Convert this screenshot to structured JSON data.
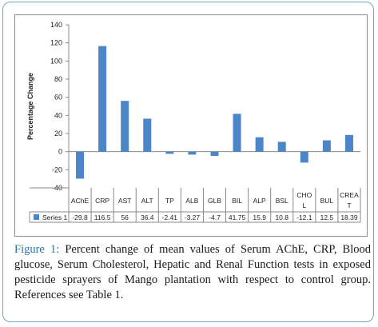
{
  "chart_data": {
    "type": "bar",
    "ylabel": "Percentage Change",
    "ylim": [
      -40,
      140
    ],
    "yticks": [
      -40,
      -20,
      0,
      20,
      40,
      60,
      80,
      100,
      120,
      140
    ],
    "categories": [
      {
        "text": "AChE",
        "lines": [
          "AChE"
        ]
      },
      {
        "text": "CRP",
        "lines": [
          "CRP"
        ]
      },
      {
        "text": "AST",
        "lines": [
          "AST"
        ]
      },
      {
        "text": "ALT",
        "lines": [
          "ALT"
        ]
      },
      {
        "text": "TP",
        "lines": [
          "TP"
        ]
      },
      {
        "text": "ALB",
        "lines": [
          "ALB"
        ]
      },
      {
        "text": "GLB",
        "lines": [
          "GLB"
        ]
      },
      {
        "text": "BIL",
        "lines": [
          "BIL"
        ]
      },
      {
        "text": "ALP",
        "lines": [
          "ALP"
        ]
      },
      {
        "text": "BSL",
        "lines": [
          "BSL"
        ]
      },
      {
        "text": "CHOL",
        "lines": [
          "CHO",
          "L"
        ]
      },
      {
        "text": "BUL",
        "lines": [
          "BUL"
        ]
      },
      {
        "text": "CREAT",
        "lines": [
          "CREA",
          "T"
        ]
      }
    ],
    "series": [
      {
        "name": "Series 1",
        "color": "#4a86c8",
        "values": [
          -29.8,
          116.5,
          56,
          36.4,
          -2.41,
          -3.27,
          -4.7,
          41.75,
          15.9,
          10.8,
          -12.1,
          12.5,
          18.39
        ],
        "labels": [
          "-29.8",
          "116.5",
          "56",
          "36.4",
          "-2.41",
          "-3.27",
          "-4.7",
          "41.75",
          "15.9",
          "10.8",
          "-12.1",
          "12.5",
          "18.39"
        ]
      }
    ],
    "grid": false,
    "legend": "data-table"
  },
  "caption": {
    "label": "Figure 1:",
    "text": "Percent change of mean values of Serum AChE, CRP, Blood glucose, Serum Cholesterol, Hepatic and Renal Function tests in exposed pesticide sprayers of Mango plantation with respect to control group. References see Table 1."
  },
  "colors": {
    "frame": "#6fa8c8",
    "bar": "#4a86c8",
    "caption_label": "#2e73a8"
  }
}
